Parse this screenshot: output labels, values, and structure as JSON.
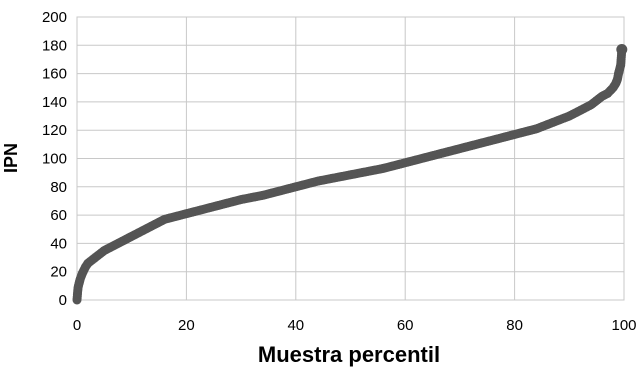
{
  "chart_data": {
    "type": "scatter",
    "title": "",
    "xlabel": "Muestra percentil",
    "ylabel": "IPN",
    "xlim": [
      0,
      100
    ],
    "ylim": [
      0,
      200
    ],
    "x_ticks": [
      0,
      20,
      40,
      60,
      80,
      100
    ],
    "y_ticks": [
      0,
      20,
      40,
      60,
      80,
      100,
      120,
      140,
      160,
      180,
      200
    ],
    "grid": true,
    "legend": "none",
    "series": [
      {
        "marker_color": "#555555",
        "points": [
          [
            0,
            0
          ],
          [
            0.1,
            5
          ],
          [
            0.2,
            9
          ],
          [
            0.4,
            12
          ],
          [
            0.6,
            15
          ],
          [
            1,
            19
          ],
          [
            1.5,
            23
          ],
          [
            2,
            26
          ],
          [
            3,
            29
          ],
          [
            4,
            32
          ],
          [
            5,
            35
          ],
          [
            6,
            37
          ],
          [
            7,
            39
          ],
          [
            8,
            41
          ],
          [
            9,
            43
          ],
          [
            10,
            45
          ],
          [
            11,
            47
          ],
          [
            12,
            49
          ],
          [
            13,
            51
          ],
          [
            14,
            53
          ],
          [
            15,
            55
          ],
          [
            16,
            57
          ],
          [
            18,
            59
          ],
          [
            20,
            61
          ],
          [
            22,
            63
          ],
          [
            24,
            65
          ],
          [
            26,
            67
          ],
          [
            28,
            69
          ],
          [
            30,
            71
          ],
          [
            32,
            72.5
          ],
          [
            34,
            74
          ],
          [
            36,
            76
          ],
          [
            38,
            78
          ],
          [
            40,
            80
          ],
          [
            42,
            82
          ],
          [
            44,
            84
          ],
          [
            46,
            85.5
          ],
          [
            48,
            87
          ],
          [
            50,
            88.5
          ],
          [
            52,
            90
          ],
          [
            54,
            91.5
          ],
          [
            56,
            93
          ],
          [
            58,
            95
          ],
          [
            60,
            97
          ],
          [
            62,
            99
          ],
          [
            64,
            101
          ],
          [
            66,
            103
          ],
          [
            68,
            105
          ],
          [
            70,
            107
          ],
          [
            72,
            109
          ],
          [
            74,
            111
          ],
          [
            76,
            113
          ],
          [
            78,
            115
          ],
          [
            80,
            117
          ],
          [
            82,
            119
          ],
          [
            84,
            121
          ],
          [
            86,
            124
          ],
          [
            88,
            127
          ],
          [
            90,
            130
          ],
          [
            92,
            134
          ],
          [
            94,
            138
          ],
          [
            95,
            141
          ],
          [
            96,
            144
          ],
          [
            97,
            146
          ],
          [
            97.5,
            148
          ],
          [
            98,
            150
          ],
          [
            98.5,
            153
          ],
          [
            98.8,
            156
          ],
          [
            99,
            160
          ],
          [
            99.2,
            163
          ],
          [
            99.4,
            166
          ],
          [
            99.6,
            177
          ]
        ]
      }
    ]
  },
  "style": {
    "grid_color": "#c8c8c8",
    "plot_border_color": "#c8c8c8"
  }
}
